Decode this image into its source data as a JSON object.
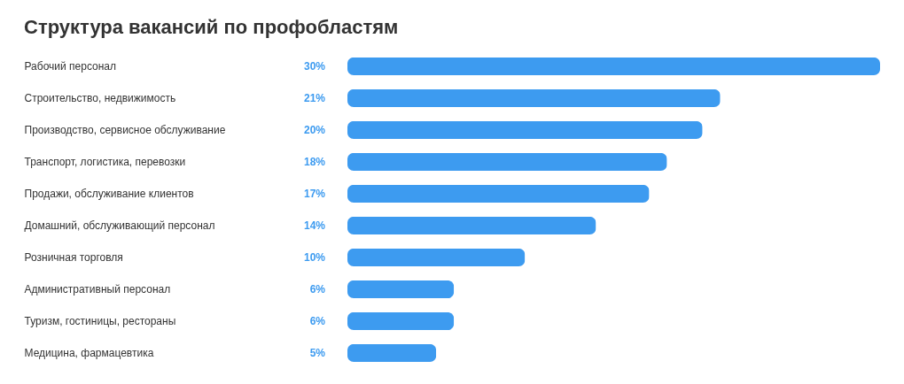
{
  "chart_data": {
    "type": "bar",
    "orientation": "horizontal",
    "title": "Структура вакансий по профобластям",
    "categories": [
      "Рабочий персонал",
      "Строительство, недвижимость",
      "Производство, сервисное обслуживание",
      "Транспорт, логистика, перевозки",
      "Продажи, обслуживание клиентов",
      "Домашний, обслуживающий персонал",
      "Розничная торговля",
      "Административный персонал",
      "Туризм, гостиницы, рестораны",
      "Медицина, фармацевтика"
    ],
    "values": [
      30,
      21,
      20,
      18,
      17,
      14,
      10,
      6,
      6,
      5
    ],
    "value_labels": [
      "30%",
      "21%",
      "20%",
      "18%",
      "17%",
      "14%",
      "10%",
      "6%",
      "6%",
      "5%"
    ],
    "color": "#3d9bf0"
  }
}
